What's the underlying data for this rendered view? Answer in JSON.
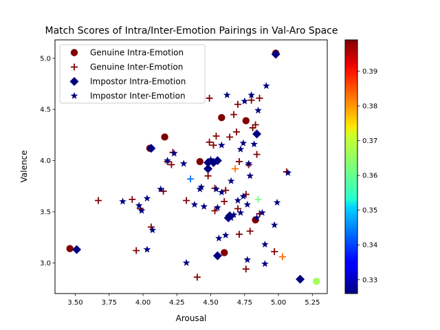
{
  "chart_data": {
    "type": "scatter",
    "title": "Match Scores of Intra/Inter-Emotion Pairings in Val-Aro Space",
    "xlabel": "Arousal",
    "ylabel": "Valence",
    "xlim": [
      3.35,
      5.36
    ],
    "ylim": [
      2.7,
      5.18
    ],
    "xticks": [
      "3.50",
      "3.75",
      "4.00",
      "4.25",
      "4.50",
      "4.75",
      "5.00",
      "5.25"
    ],
    "xtick_values": [
      3.5,
      3.75,
      4.0,
      4.25,
      4.5,
      4.75,
      5.0,
      5.25
    ],
    "yticks": [
      "3.0",
      "3.5",
      "4.0",
      "4.5",
      "5.0"
    ],
    "ytick_values": [
      3.0,
      3.5,
      4.0,
      4.5,
      5.0
    ],
    "legend_position": "top-left",
    "colorbar": {
      "colormap": "jet",
      "min": 0.326,
      "max": 0.399,
      "ticks": [
        "0.33",
        "0.34",
        "0.35",
        "0.36",
        "0.37",
        "0.38",
        "0.39"
      ],
      "tick_values": [
        0.33,
        0.34,
        0.35,
        0.36,
        0.37,
        0.38,
        0.39
      ]
    },
    "series": [
      {
        "name": "Genuine Intra-Emotion",
        "marker": "circle",
        "points": [
          [
            3.46,
            3.14,
            0.399
          ],
          [
            4.05,
            4.12,
            0.399
          ],
          [
            4.16,
            4.23,
            0.399
          ],
          [
            4.42,
            3.99,
            0.399
          ],
          [
            4.58,
            4.42,
            0.399
          ],
          [
            4.6,
            3.1,
            0.399
          ],
          [
            4.76,
            4.39,
            0.399
          ],
          [
            4.83,
            3.42,
            0.399
          ],
          [
            4.98,
            5.05,
            0.399
          ],
          [
            5.28,
            2.82,
            0.365
          ]
        ]
      },
      {
        "name": "Genuine Inter-Emotion",
        "marker": "plus",
        "points": [
          [
            3.67,
            3.61,
            0.399
          ],
          [
            3.92,
            3.62,
            0.399
          ],
          [
            3.95,
            3.12,
            0.399
          ],
          [
            3.98,
            3.53,
            0.399
          ],
          [
            4.06,
            3.35,
            0.399
          ],
          [
            4.15,
            3.7,
            0.399
          ],
          [
            4.18,
            3.99,
            0.399
          ],
          [
            4.21,
            3.96,
            0.399
          ],
          [
            4.22,
            4.08,
            0.399
          ],
          [
            4.32,
            3.61,
            0.399
          ],
          [
            4.35,
            3.82,
            0.343
          ],
          [
            4.4,
            2.86,
            0.399
          ],
          [
            4.48,
            3.85,
            0.399
          ],
          [
            4.49,
            4.18,
            0.399
          ],
          [
            4.49,
            4.61,
            0.399
          ],
          [
            4.52,
            4.15,
            0.399
          ],
          [
            4.53,
            3.73,
            0.399
          ],
          [
            4.53,
            3.51,
            0.399
          ],
          [
            4.54,
            4.24,
            0.399
          ],
          [
            4.6,
            3.6,
            0.399
          ],
          [
            4.61,
            3.71,
            0.399
          ],
          [
            4.64,
            4.23,
            0.399
          ],
          [
            4.67,
            4.45,
            0.399
          ],
          [
            4.68,
            3.92,
            0.382
          ],
          [
            4.69,
            4.28,
            0.399
          ],
          [
            4.7,
            3.53,
            0.399
          ],
          [
            4.7,
            4.55,
            0.399
          ],
          [
            4.71,
            3.99,
            0.399
          ],
          [
            4.71,
            3.28,
            0.399
          ],
          [
            4.76,
            3.67,
            0.399
          ],
          [
            4.76,
            2.94,
            0.399
          ],
          [
            4.78,
            3.96,
            0.399
          ],
          [
            4.79,
            3.31,
            0.399
          ],
          [
            4.8,
            4.59,
            0.399
          ],
          [
            4.81,
            4.32,
            0.399
          ],
          [
            4.83,
            4.35,
            0.399
          ],
          [
            4.84,
            4.06,
            0.399
          ],
          [
            4.85,
            3.62,
            0.362
          ],
          [
            4.86,
            3.48,
            0.399
          ],
          [
            4.86,
            4.61,
            0.399
          ],
          [
            4.97,
            3.11,
            0.399
          ],
          [
            5.03,
            3.06,
            0.382
          ],
          [
            5.06,
            3.89,
            0.399
          ]
        ]
      },
      {
        "name": "Impostor Intra-Emotion",
        "marker": "diamond",
        "points": [
          [
            3.51,
            3.13,
            0.326
          ],
          [
            4.06,
            4.12,
            0.326
          ],
          [
            4.48,
            3.98,
            0.326
          ],
          [
            4.48,
            3.92,
            0.326
          ],
          [
            4.52,
            3.98,
            0.326
          ],
          [
            4.55,
            4.0,
            0.326
          ],
          [
            4.55,
            3.07,
            0.326
          ],
          [
            4.63,
            3.44,
            0.326
          ],
          [
            4.64,
            3.46,
            0.326
          ],
          [
            4.84,
            4.26,
            0.326
          ],
          [
            4.98,
            5.04,
            0.326
          ],
          [
            5.16,
            2.84,
            0.326
          ]
        ]
      },
      {
        "name": "Impostor Inter-Emotion",
        "marker": "star",
        "points": [
          [
            3.85,
            3.6,
            0.326
          ],
          [
            3.97,
            3.56,
            0.326
          ],
          [
            3.99,
            3.51,
            0.326
          ],
          [
            4.03,
            3.63,
            0.326
          ],
          [
            4.03,
            3.13,
            0.326
          ],
          [
            4.07,
            3.32,
            0.326
          ],
          [
            4.13,
            3.72,
            0.326
          ],
          [
            4.18,
            4.0,
            0.326
          ],
          [
            4.23,
            4.07,
            0.326
          ],
          [
            4.3,
            3.97,
            0.326
          ],
          [
            4.32,
            3.0,
            0.326
          ],
          [
            4.38,
            3.57,
            0.326
          ],
          [
            4.42,
            3.72,
            0.326
          ],
          [
            4.43,
            3.74,
            0.326
          ],
          [
            4.45,
            3.55,
            0.326
          ],
          [
            4.5,
            4.01,
            0.326
          ],
          [
            4.54,
            3.72,
            0.326
          ],
          [
            4.55,
            3.54,
            0.326
          ],
          [
            4.56,
            3.24,
            0.326
          ],
          [
            4.58,
            4.15,
            0.326
          ],
          [
            4.58,
            3.69,
            0.326
          ],
          [
            4.61,
            3.27,
            0.326
          ],
          [
            4.62,
            4.64,
            0.326
          ],
          [
            4.65,
            3.8,
            0.326
          ],
          [
            4.65,
            3.44,
            0.326
          ],
          [
            4.67,
            3.47,
            0.326
          ],
          [
            4.7,
            3.61,
            0.326
          ],
          [
            4.72,
            3.49,
            0.326
          ],
          [
            4.72,
            4.11,
            0.326
          ],
          [
            4.74,
            4.17,
            0.326
          ],
          [
            4.74,
            3.65,
            0.326
          ],
          [
            4.75,
            4.58,
            0.326
          ],
          [
            4.77,
            3.57,
            0.326
          ],
          [
            4.77,
            3.03,
            0.326
          ],
          [
            4.78,
            3.97,
            0.326
          ],
          [
            4.79,
            3.85,
            0.326
          ],
          [
            4.8,
            4.64,
            0.326
          ],
          [
            4.82,
            4.16,
            0.326
          ],
          [
            4.84,
            3.44,
            0.326
          ],
          [
            4.85,
            4.49,
            0.326
          ],
          [
            4.88,
            3.49,
            0.326
          ],
          [
            4.9,
            3.18,
            0.326
          ],
          [
            4.9,
            2.99,
            0.326
          ],
          [
            4.91,
            4.73,
            0.326
          ],
          [
            4.97,
            3.37,
            0.326
          ],
          [
            4.99,
            3.59,
            0.326
          ],
          [
            5.07,
            3.88,
            0.326
          ]
        ]
      }
    ]
  }
}
